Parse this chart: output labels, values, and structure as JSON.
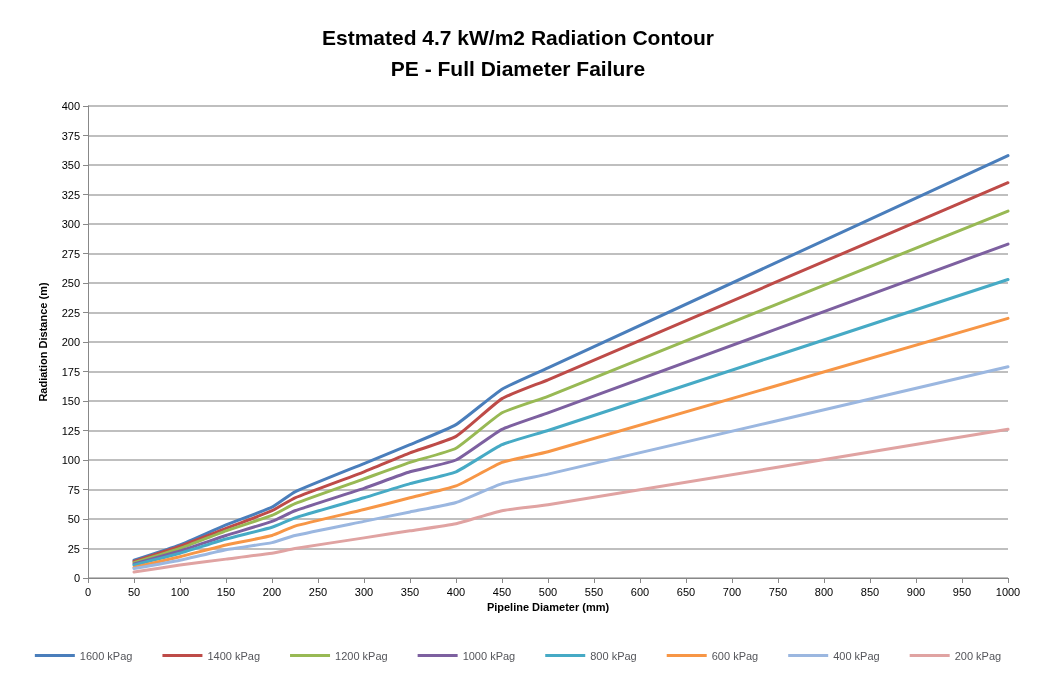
{
  "chart_data": {
    "type": "line",
    "title": "Estmated 4.7 kW/m2 Radiation Contour",
    "subtitle": "PE - Full Diameter Failure",
    "xlabel": "Pipeline Diameter (mm)",
    "ylabel": "Radiation Distance (m)",
    "x": [
      50,
      100,
      150,
      200,
      225,
      300,
      350,
      400,
      450,
      500,
      1000
    ],
    "series": [
      {
        "name": "1600 kPag",
        "color": "#4a7ebb",
        "values": [
          15,
          28,
          45,
          60,
          73,
          97,
          113,
          130,
          160,
          178,
          358
        ]
      },
      {
        "name": "1400 kPag",
        "color": "#be4b48",
        "values": [
          14,
          27,
          42,
          57,
          68,
          90,
          106,
          120,
          152,
          168,
          335
        ]
      },
      {
        "name": "1200 kPag",
        "color": "#98b954",
        "values": [
          13,
          25,
          40,
          53,
          63,
          84,
          98,
          110,
          140,
          154,
          311
        ]
      },
      {
        "name": "1000 kPag",
        "color": "#7d60a0",
        "values": [
          12,
          23,
          36,
          48,
          57,
          76,
          90,
          100,
          126,
          140,
          283
        ]
      },
      {
        "name": "800 kPag",
        "color": "#46aac5",
        "values": [
          11,
          21,
          33,
          43,
          51,
          68,
          80,
          90,
          113,
          125,
          253
        ]
      },
      {
        "name": "600 kPag",
        "color": "#f79646",
        "values": [
          9,
          18,
          28,
          36,
          44,
          58,
          68,
          78,
          98,
          107,
          220
        ]
      },
      {
        "name": "400 kPag",
        "color": "#9bb7e0",
        "values": [
          8,
          15,
          24,
          30,
          36,
          48,
          56,
          64,
          80,
          88,
          179
        ]
      },
      {
        "name": "200 kPag",
        "color": "#e0a3a2",
        "values": [
          5,
          11,
          16,
          21,
          25,
          34,
          40,
          46,
          57,
          62,
          126
        ]
      }
    ],
    "xlim": [
      0,
      1000
    ],
    "xticks": [
      0,
      50,
      100,
      150,
      200,
      250,
      300,
      350,
      400,
      450,
      500,
      550,
      600,
      650,
      700,
      750,
      800,
      850,
      900,
      950,
      1000
    ],
    "ylim": [
      0,
      400
    ],
    "yticks": [
      0,
      25,
      50,
      75,
      100,
      125,
      150,
      175,
      200,
      225,
      250,
      275,
      300,
      325,
      350,
      375,
      400
    ],
    "grid": "y",
    "legend": "bottom",
    "marker": "none",
    "line_style": "solid"
  }
}
